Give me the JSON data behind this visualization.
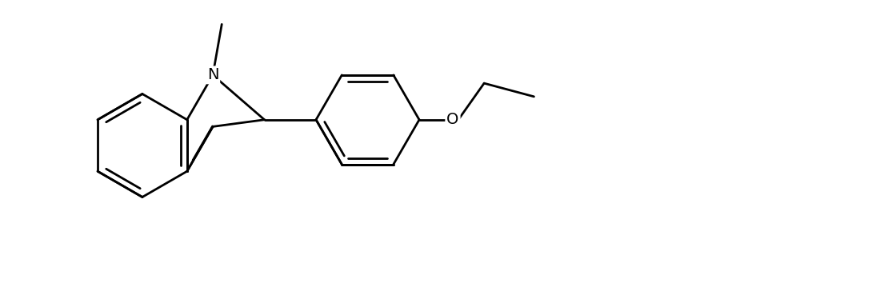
{
  "background_color": "#ffffff",
  "line_color": "#000000",
  "line_width": 2.0,
  "fig_width": 11.15,
  "fig_height": 3.64,
  "dpi": 100
}
